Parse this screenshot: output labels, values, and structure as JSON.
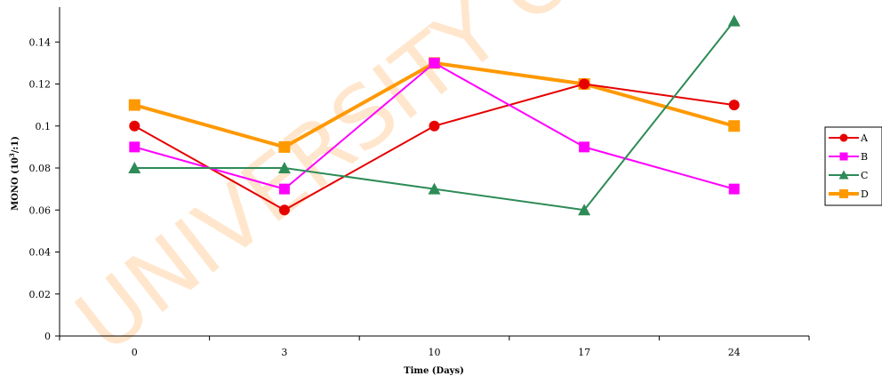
{
  "chart_data": {
    "type": "line",
    "title": "",
    "xlabel": "Time (Days)",
    "ylabel_main": "MONO (10",
    "ylabel_sup": "3",
    "ylabel_tail": "/:1)",
    "categories": [
      "0",
      "3",
      "10",
      "17",
      "24"
    ],
    "ylim": [
      0,
      0.16
    ],
    "yticks": [
      "0",
      "0.02",
      "0.04",
      "0.06",
      "0.08",
      "0.1",
      "0.12",
      "0.14"
    ],
    "ytick_values": [
      0,
      0.02,
      0.04,
      0.06,
      0.08,
      0.1,
      0.12,
      0.14
    ],
    "grid": false,
    "legend_placement": "right",
    "series": [
      {
        "name": "A",
        "values": [
          0.1,
          0.06,
          0.1,
          0.12,
          0.11
        ],
        "color": "#e60000",
        "marker": "circle",
        "bold": false
      },
      {
        "name": "B",
        "values": [
          0.09,
          0.07,
          0.13,
          0.09,
          0.07
        ],
        "color": "#ff00ff",
        "marker": "square",
        "bold": false
      },
      {
        "name": "C",
        "values": [
          0.08,
          0.08,
          0.07,
          0.06,
          0.15
        ],
        "color": "#2e8b57",
        "marker": "triangle",
        "bold": false
      },
      {
        "name": "D",
        "values": [
          0.11,
          0.09,
          0.13,
          0.12,
          0.1
        ],
        "color": "#ff9900",
        "marker": "square",
        "bold": true
      }
    ]
  },
  "watermark": {
    "text": "UNIVERSITY OF IBADAN",
    "color": "#ffd3a3"
  }
}
